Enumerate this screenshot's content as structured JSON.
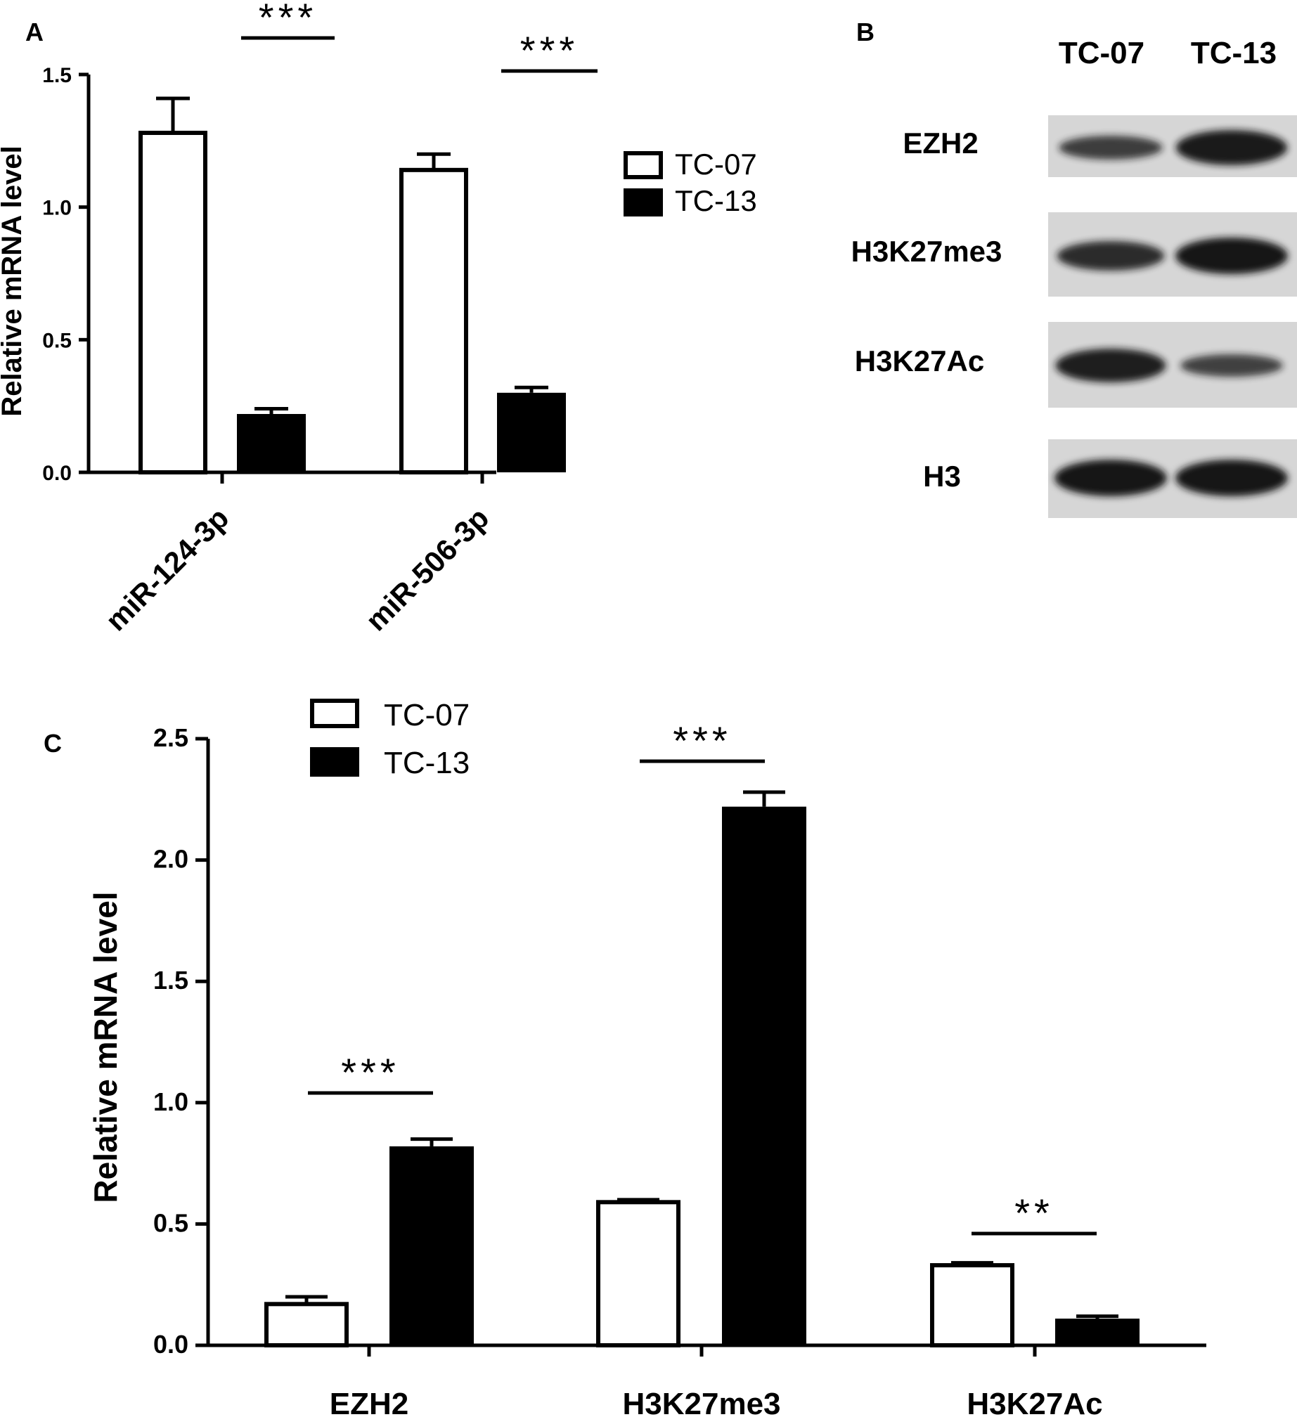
{
  "panels": {
    "a": "A",
    "b": "B",
    "c": "C"
  },
  "colors": {
    "tc07_fill": "#ffffff",
    "tc13_fill": "#000000",
    "blot_bg": "#d6d6d6",
    "band": "#141414"
  },
  "chart_data": [
    {
      "panel": "A",
      "type": "bar",
      "ylabel": "Relative mRNA level",
      "ylim": [
        0,
        1.5
      ],
      "yticks": [
        "0.0",
        "0.5",
        "1.0",
        "1.5"
      ],
      "categories": [
        "miR-124-3p",
        "miR-506-3p"
      ],
      "series": [
        {
          "name": "TC-07",
          "values": [
            1.28,
            1.14
          ],
          "errors": [
            0.13,
            0.06
          ]
        },
        {
          "name": "TC-13",
          "values": [
            0.22,
            0.3
          ],
          "errors": [
            0.02,
            0.02
          ]
        }
      ],
      "significance": [
        "***",
        "***"
      ],
      "legend": "right"
    },
    {
      "panel": "C",
      "type": "bar",
      "ylabel": "Relative mRNA level",
      "ylim": [
        0,
        2.5
      ],
      "yticks": [
        "0.0",
        "0.5",
        "1.0",
        "1.5",
        "2.0",
        "2.5"
      ],
      "categories": [
        "EZH2",
        "H3K27me3",
        "H3K27Ac"
      ],
      "series": [
        {
          "name": "TC-07",
          "values": [
            0.17,
            0.59,
            0.33
          ],
          "errors": [
            0.03,
            0.01,
            0.01
          ]
        },
        {
          "name": "TC-13",
          "values": [
            0.82,
            2.22,
            0.11
          ],
          "errors": [
            0.03,
            0.06,
            0.01
          ]
        }
      ],
      "significance": [
        "***",
        "***",
        "**"
      ],
      "legend": "top-left"
    }
  ],
  "blot": {
    "lanes": [
      "TC-07",
      "TC-13"
    ],
    "rows": [
      {
        "label": "EZH2",
        "intensity": [
          0.55,
          0.95
        ]
      },
      {
        "label": "H3K27me3",
        "intensity": [
          0.75,
          1.0
        ]
      },
      {
        "label": "H3K27Ac",
        "intensity": [
          0.9,
          0.5
        ]
      },
      {
        "label": "H3",
        "intensity": [
          1.0,
          1.0
        ]
      }
    ]
  }
}
